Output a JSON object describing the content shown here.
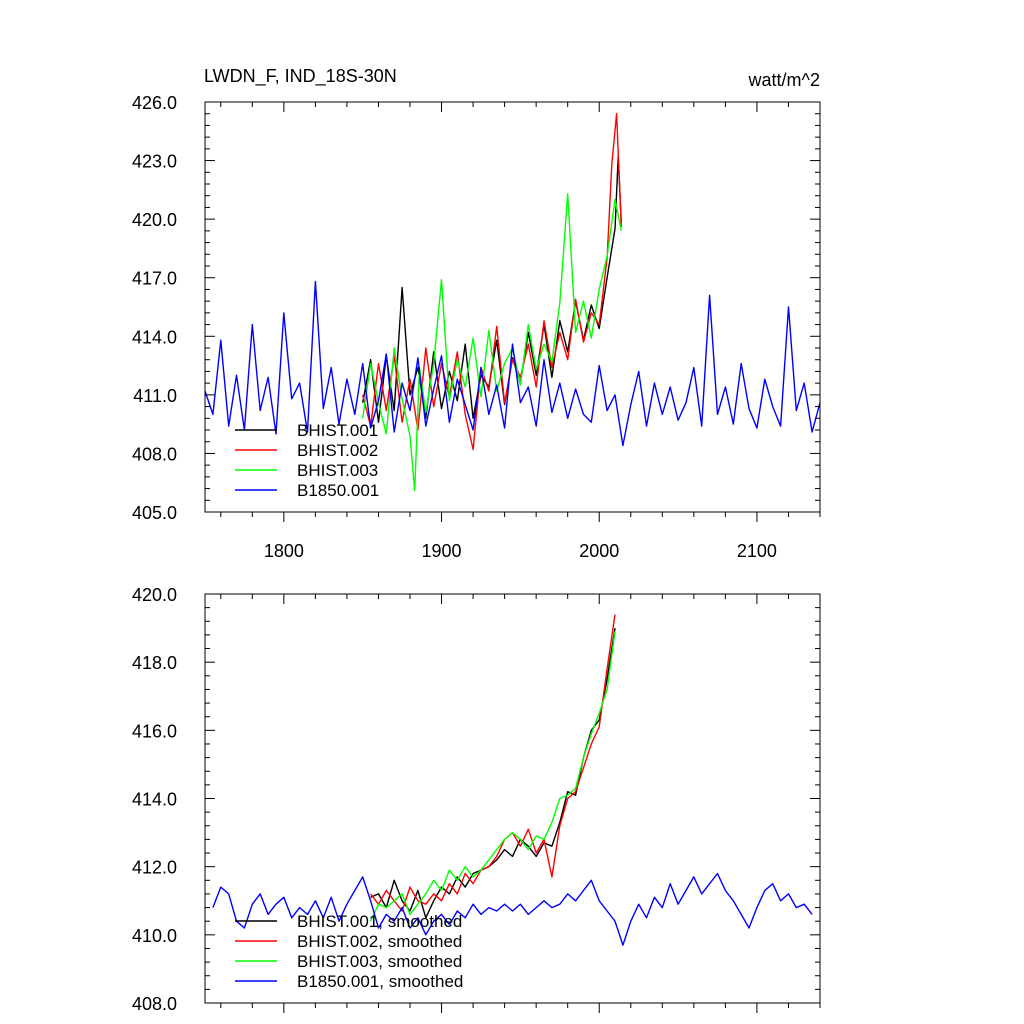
{
  "chart_data": [
    {
      "type": "line",
      "title_left": "LWDN_F, IND_18S-30N",
      "title_right": "watt/m^2",
      "xlim": [
        1750,
        2140
      ],
      "ylim": [
        405.0,
        426.0
      ],
      "xticks": [
        1800,
        1900,
        2000,
        2100
      ],
      "xtick_labels": [
        "1800",
        "1900",
        "2000",
        "2100"
      ],
      "yticks": [
        405,
        408,
        411,
        414,
        417,
        420,
        423,
        426
      ],
      "ytick_labels": [
        "405.0",
        "408.0",
        "411.0",
        "414.0",
        "417.0",
        "420.0",
        "423.0",
        "426.0"
      ],
      "legend": "lower-left",
      "series": [
        {
          "name": "BHIST.001",
          "color": "#000000",
          "x": [
            1850,
            1855,
            1860,
            1865,
            1870,
            1875,
            1880,
            1885,
            1890,
            1895,
            1900,
            1905,
            1910,
            1915,
            1920,
            1925,
            1930,
            1935,
            1940,
            1945,
            1950,
            1955,
            1960,
            1965,
            1970,
            1975,
            1980,
            1985,
            1990,
            1995,
            2000,
            2005,
            2010,
            2012,
            2014
          ],
          "y": [
            410.6,
            412.8,
            409.6,
            413.0,
            410.2,
            416.5,
            411.0,
            412.4,
            409.8,
            413.2,
            410.3,
            412.2,
            410.7,
            413.6,
            409.8,
            412.0,
            411.4,
            413.8,
            410.5,
            412.9,
            411.6,
            414.2,
            412.0,
            414.6,
            411.9,
            414.8,
            413.2,
            415.8,
            413.8,
            415.6,
            414.4,
            417.0,
            419.5,
            423.2,
            419.8
          ]
        },
        {
          "name": "BHIST.002",
          "color": "#ff0000",
          "x": [
            1850,
            1855,
            1860,
            1865,
            1870,
            1875,
            1880,
            1885,
            1890,
            1895,
            1900,
            1905,
            1910,
            1915,
            1920,
            1925,
            1930,
            1935,
            1940,
            1945,
            1950,
            1955,
            1960,
            1965,
            1970,
            1975,
            1980,
            1985,
            1990,
            1995,
            2000,
            2005,
            2008,
            2011,
            2014
          ],
          "y": [
            411.0,
            409.4,
            412.6,
            410.2,
            413.0,
            409.6,
            411.8,
            409.2,
            413.4,
            410.4,
            412.6,
            410.9,
            413.2,
            410.0,
            408.2,
            412.4,
            411.2,
            414.5,
            410.6,
            412.8,
            411.9,
            413.6,
            411.4,
            414.8,
            412.4,
            414.2,
            412.8,
            415.9,
            413.7,
            415.2,
            414.6,
            418.0,
            422.8,
            425.4,
            419.6
          ]
        },
        {
          "name": "BHIST.003",
          "color": "#00ff00",
          "x": [
            1850,
            1855,
            1860,
            1865,
            1870,
            1875,
            1880,
            1883,
            1886,
            1890,
            1895,
            1900,
            1905,
            1910,
            1915,
            1920,
            1925,
            1930,
            1935,
            1940,
            1945,
            1950,
            1955,
            1960,
            1965,
            1970,
            1975,
            1980,
            1985,
            1990,
            1995,
            2000,
            2005,
            2010,
            2014
          ],
          "y": [
            409.8,
            412.6,
            410.6,
            409.0,
            413.4,
            410.8,
            408.9,
            406.1,
            412.4,
            410.1,
            412.6,
            416.9,
            410.7,
            412.8,
            411.4,
            413.9,
            410.9,
            414.3,
            411.2,
            412.6,
            413.4,
            411.5,
            414.6,
            412.3,
            413.6,
            412.7,
            415.7,
            421.3,
            414.2,
            415.8,
            413.9,
            416.4,
            418.1,
            421.0,
            419.4
          ]
        },
        {
          "name": "B1850.001",
          "color": "#0000ff",
          "x": [
            1750,
            1755,
            1760,
            1765,
            1770,
            1775,
            1780,
            1785,
            1790,
            1795,
            1800,
            1805,
            1810,
            1815,
            1820,
            1825,
            1830,
            1835,
            1840,
            1845,
            1850,
            1855,
            1860,
            1865,
            1870,
            1875,
            1880,
            1885,
            1890,
            1895,
            1900,
            1905,
            1910,
            1915,
            1920,
            1925,
            1930,
            1935,
            1940,
            1945,
            1950,
            1955,
            1960,
            1965,
            1970,
            1975,
            1980,
            1985,
            1990,
            1995,
            2000,
            2005,
            2010,
            2015,
            2020,
            2025,
            2030,
            2035,
            2040,
            2045,
            2050,
            2055,
            2060,
            2065,
            2070,
            2075,
            2080,
            2085,
            2090,
            2095,
            2100,
            2105,
            2110,
            2115,
            2120,
            2125,
            2130,
            2135,
            2140
          ],
          "y": [
            411.2,
            410.0,
            413.8,
            409.4,
            412.0,
            409.2,
            414.6,
            410.2,
            411.9,
            409.0,
            415.2,
            410.8,
            411.6,
            409.1,
            416.8,
            410.3,
            412.4,
            409.5,
            411.8,
            410.0,
            412.6,
            409.3,
            410.7,
            413.1,
            409.1,
            411.6,
            410.2,
            412.9,
            409.4,
            411.3,
            413.0,
            409.6,
            411.8,
            410.5,
            409.2,
            412.4,
            410.0,
            411.5,
            409.3,
            413.6,
            410.6,
            411.4,
            409.4,
            412.8,
            410.1,
            411.6,
            409.8,
            411.3,
            410.0,
            409.6,
            412.5,
            410.2,
            411.0,
            408.4,
            410.5,
            412.2,
            409.4,
            411.6,
            410.0,
            411.4,
            409.7,
            410.6,
            412.4,
            409.4,
            416.1,
            410.0,
            411.4,
            409.5,
            412.6,
            410.3,
            409.3,
            411.8,
            410.4,
            409.4,
            415.5,
            410.2,
            411.6,
            409.1,
            410.6
          ]
        }
      ]
    },
    {
      "type": "line",
      "xlim": [
        1750,
        2140
      ],
      "ylim": [
        408.0,
        420.0
      ],
      "xticks": [
        1800,
        1900,
        2000,
        2100
      ],
      "yticks": [
        408,
        410,
        412,
        414,
        416,
        418,
        420
      ],
      "ytick_labels": [
        "408.0",
        "410.0",
        "412.0",
        "414.0",
        "416.0",
        "418.0",
        "420.0"
      ],
      "legend": "lower-left",
      "series": [
        {
          "name": "BHIST.001, smoothed",
          "color": "#000000",
          "x": [
            1855,
            1860,
            1865,
            1870,
            1875,
            1880,
            1885,
            1890,
            1895,
            1900,
            1905,
            1910,
            1915,
            1920,
            1925,
            1930,
            1935,
            1940,
            1945,
            1950,
            1955,
            1960,
            1965,
            1970,
            1975,
            1980,
            1985,
            1990,
            1995,
            2000,
            2005,
            2010
          ],
          "y": [
            411.1,
            411.2,
            410.8,
            411.6,
            411.0,
            410.7,
            411.3,
            410.5,
            411.0,
            411.4,
            411.2,
            411.7,
            411.4,
            411.8,
            411.9,
            412.0,
            412.2,
            412.5,
            412.3,
            412.8,
            412.6,
            412.3,
            412.7,
            412.6,
            413.3,
            414.2,
            414.1,
            415.2,
            416.0,
            416.3,
            417.5,
            419.0
          ]
        },
        {
          "name": "BHIST.002, smoothed",
          "color": "#ff0000",
          "x": [
            1855,
            1860,
            1865,
            1870,
            1875,
            1880,
            1885,
            1890,
            1895,
            1900,
            1905,
            1910,
            1915,
            1920,
            1925,
            1930,
            1935,
            1940,
            1945,
            1950,
            1955,
            1960,
            1965,
            1970,
            1975,
            1980,
            1985,
            1990,
            1995,
            2000,
            2005,
            2010
          ],
          "y": [
            411.2,
            410.9,
            411.3,
            411.0,
            410.7,
            411.4,
            411.0,
            410.9,
            411.2,
            411.0,
            411.5,
            411.2,
            411.8,
            411.5,
            411.9,
            412.0,
            412.3,
            412.8,
            413.0,
            412.6,
            413.1,
            412.4,
            412.8,
            411.7,
            413.2,
            414.0,
            414.2,
            414.9,
            415.6,
            416.1,
            417.8,
            419.4
          ]
        },
        {
          "name": "BHIST.003, smoothed",
          "color": "#00ff00",
          "x": [
            1855,
            1860,
            1865,
            1870,
            1875,
            1880,
            1885,
            1890,
            1895,
            1900,
            1905,
            1910,
            1915,
            1920,
            1925,
            1930,
            1935,
            1940,
            1945,
            1950,
            1955,
            1960,
            1965,
            1970,
            1975,
            1980,
            1985,
            1990,
            1995,
            2000,
            2005,
            2010
          ],
          "y": [
            410.4,
            410.9,
            410.8,
            411.0,
            411.2,
            410.6,
            410.9,
            411.2,
            411.6,
            411.3,
            411.9,
            411.6,
            412.0,
            411.7,
            411.9,
            412.2,
            412.5,
            412.8,
            413.0,
            412.8,
            412.5,
            412.9,
            412.8,
            413.3,
            414.0,
            414.1,
            414.3,
            415.2,
            415.9,
            416.5,
            417.2,
            418.9
          ]
        },
        {
          "name": "B1850.001, smoothed",
          "color": "#0000ff",
          "x": [
            1755,
            1760,
            1765,
            1770,
            1775,
            1780,
            1785,
            1790,
            1795,
            1800,
            1805,
            1810,
            1815,
            1820,
            1825,
            1830,
            1835,
            1840,
            1845,
            1850,
            1855,
            1860,
            1865,
            1870,
            1875,
            1880,
            1885,
            1890,
            1895,
            1900,
            1905,
            1910,
            1915,
            1920,
            1925,
            1930,
            1935,
            1940,
            1945,
            1950,
            1955,
            1960,
            1965,
            1970,
            1975,
            1980,
            1985,
            1990,
            1995,
            2000,
            2005,
            2010,
            2015,
            2020,
            2025,
            2030,
            2035,
            2040,
            2045,
            2050,
            2055,
            2060,
            2065,
            2070,
            2075,
            2080,
            2085,
            2090,
            2095,
            2100,
            2105,
            2110,
            2115,
            2120,
            2125,
            2130,
            2135
          ],
          "y": [
            410.8,
            411.4,
            411.2,
            410.4,
            410.2,
            410.9,
            411.2,
            410.6,
            410.9,
            411.1,
            410.5,
            410.8,
            410.6,
            411.0,
            410.5,
            411.1,
            410.4,
            410.9,
            411.3,
            411.7,
            411.0,
            410.2,
            410.6,
            410.4,
            410.8,
            410.2,
            410.5,
            410.0,
            410.4,
            410.6,
            410.3,
            410.7,
            410.5,
            410.9,
            410.6,
            410.8,
            410.7,
            410.9,
            410.7,
            410.9,
            410.6,
            410.8,
            411.0,
            410.8,
            410.9,
            411.2,
            411.0,
            411.3,
            411.6,
            411.0,
            410.7,
            410.4,
            409.7,
            410.4,
            410.9,
            410.5,
            411.1,
            410.8,
            411.5,
            410.9,
            411.3,
            411.7,
            411.2,
            411.5,
            411.8,
            411.3,
            411.0,
            410.6,
            410.2,
            410.8,
            411.3,
            411.5,
            411.0,
            411.2,
            410.8,
            410.9,
            410.6
          ]
        }
      ]
    }
  ]
}
